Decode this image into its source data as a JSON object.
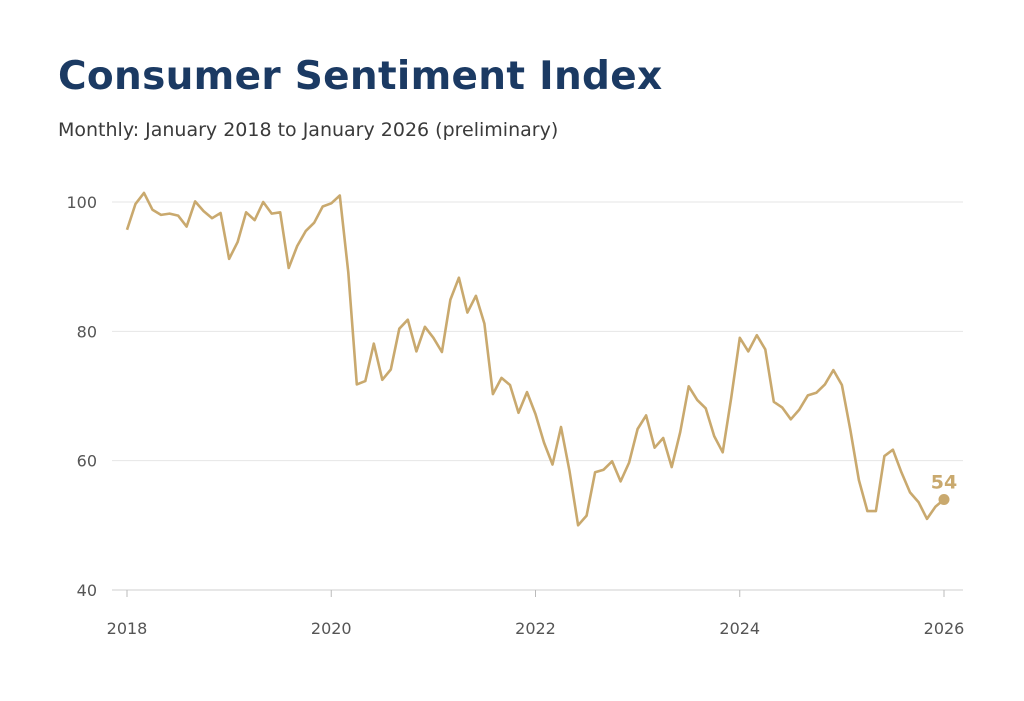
{
  "chart_data": {
    "type": "line",
    "title": "Consumer Sentiment Index",
    "subtitle": "Monthly: January 2018 to January 2026 (preliminary)",
    "xlabel": "",
    "ylabel": "",
    "ylim": [
      40,
      104
    ],
    "xlim": [
      "2018-01",
      "2026-03"
    ],
    "grid": "horizontal",
    "line_color": "#c9a96e",
    "title_color": "#1b3a63",
    "x_ticks": [
      "2018",
      "2020",
      "2022",
      "2024",
      "2026"
    ],
    "y_ticks": [
      40,
      60,
      80,
      100
    ],
    "end_label": "54",
    "start": "2018-01",
    "values": [
      95.7,
      99.7,
      101.4,
      98.8,
      98.0,
      98.2,
      97.9,
      96.2,
      100.1,
      98.6,
      97.5,
      98.3,
      91.2,
      93.8,
      98.4,
      97.2,
      100.0,
      98.2,
      98.4,
      89.8,
      93.2,
      95.5,
      96.8,
      99.3,
      99.8,
      101.0,
      89.1,
      71.8,
      72.3,
      78.1,
      72.5,
      74.1,
      80.4,
      81.8,
      76.9,
      80.7,
      79.0,
      76.8,
      84.9,
      88.3,
      82.9,
      85.5,
      81.2,
      70.3,
      72.8,
      71.7,
      67.4,
      70.6,
      67.2,
      62.8,
      59.4,
      65.2,
      58.4,
      50.0,
      51.5,
      58.2,
      58.6,
      59.9,
      56.8,
      59.7,
      64.9,
      67.0,
      62.0,
      63.5,
      59.0,
      64.4,
      71.5,
      69.4,
      68.1,
      63.8,
      61.3,
      69.7,
      79.0,
      76.9,
      79.4,
      77.2,
      69.1,
      68.2,
      66.4,
      67.9,
      70.1,
      70.5,
      71.8,
      74.0,
      71.7,
      64.7,
      57.0,
      52.2,
      52.2,
      60.7,
      61.7,
      58.2,
      55.1,
      53.6,
      51.0,
      52.9,
      54.0
    ]
  }
}
